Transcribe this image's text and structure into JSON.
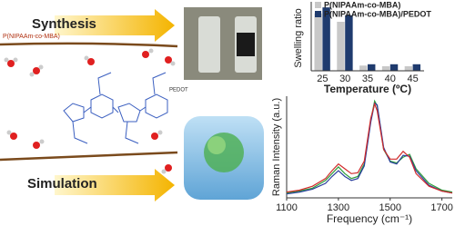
{
  "labels": {
    "synthesis": "Synthesis",
    "simulation": "Simulation",
    "polymer": "P(NIPAAm-co-MBA)",
    "pedot": "PEDOT"
  },
  "chart_data": [
    {
      "type": "bar",
      "xlabel": "Temperature (ºC)",
      "ylabel": "Swelling ratio",
      "categories": [
        "25",
        "30",
        "35",
        "40",
        "45"
      ],
      "ylim": [
        0,
        1
      ],
      "series": [
        {
          "name": "P(NIPAAm-co-MBA)",
          "color": "#c8c8c8",
          "values": [
            0.88,
            0.75,
            0.08,
            0.07,
            0.07
          ]
        },
        {
          "name": "P(NIPAAm-co-MBA)/PEDOT",
          "color": "#1f3b6e",
          "values": [
            0.97,
            0.85,
            0.1,
            0.1,
            0.1
          ]
        }
      ]
    },
    {
      "type": "line",
      "xlabel": "Frequency (cm⁻¹)",
      "ylabel": "Raman Intensity (a.u.)",
      "xlim": [
        1100,
        1740
      ],
      "xticks": [
        1100,
        1300,
        1500,
        1700
      ],
      "ylim": [
        0,
        1.05
      ],
      "x": [
        1100,
        1150,
        1200,
        1250,
        1275,
        1300,
        1325,
        1350,
        1375,
        1400,
        1425,
        1440,
        1450,
        1475,
        1500,
        1525,
        1550,
        1575,
        1600,
        1650,
        1700,
        1740
      ],
      "series": [
        {
          "color": "#2e9e3a",
          "values": [
            0.05,
            0.07,
            0.1,
            0.18,
            0.25,
            0.32,
            0.25,
            0.2,
            0.22,
            0.35,
            0.8,
            1.0,
            0.95,
            0.5,
            0.38,
            0.36,
            0.42,
            0.45,
            0.3,
            0.15,
            0.08,
            0.06
          ]
        },
        {
          "color": "#2b3f9e",
          "values": [
            0.04,
            0.06,
            0.09,
            0.15,
            0.22,
            0.28,
            0.22,
            0.18,
            0.2,
            0.33,
            0.78,
            0.98,
            0.96,
            0.52,
            0.37,
            0.35,
            0.44,
            0.43,
            0.28,
            0.13,
            0.07,
            0.05
          ]
        },
        {
          "color": "#d02a2a",
          "values": [
            0.06,
            0.08,
            0.12,
            0.2,
            0.28,
            0.35,
            0.3,
            0.25,
            0.26,
            0.38,
            0.82,
            0.97,
            0.9,
            0.5,
            0.4,
            0.4,
            0.48,
            0.42,
            0.25,
            0.12,
            0.07,
            0.05
          ]
        }
      ]
    }
  ]
}
